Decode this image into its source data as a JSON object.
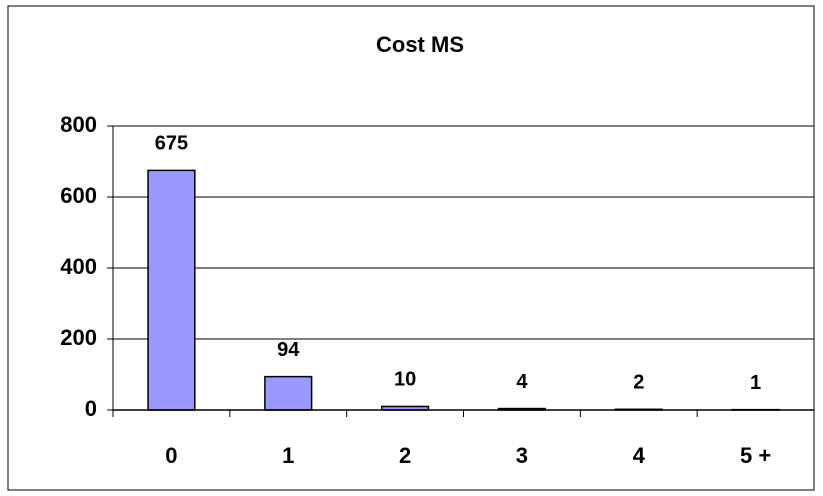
{
  "chart_data": {
    "type": "bar",
    "title": "Cost MS",
    "categories": [
      "0",
      "1",
      "2",
      "3",
      "4",
      "5 +"
    ],
    "values": [
      675,
      94,
      10,
      4,
      2,
      1
    ],
    "color": "#9999ff",
    "ylim": [
      0,
      800
    ],
    "yticks": [
      0,
      200,
      400,
      600,
      800
    ],
    "grid": true
  }
}
